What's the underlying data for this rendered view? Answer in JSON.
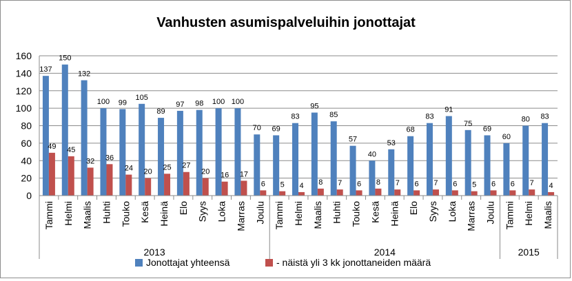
{
  "chart_data": {
    "type": "bar",
    "title": "Vanhusten asumispalveluihin jonottajat",
    "categories": [
      "Tammi",
      "Helmi",
      "Maalis",
      "Huhti",
      "Touko",
      "Kesä",
      "Heinä",
      "Elo",
      "Syys",
      "Loka",
      "Marras",
      "Joulu",
      "Tammi",
      "Helmi",
      "Maalis",
      "Huhti",
      "Touko",
      "Kesä",
      "Heinä",
      "Elo",
      "Syys",
      "Loka",
      "Marras",
      "Joulu",
      "Tammi",
      "Helmi",
      "Maalis"
    ],
    "year_groups": [
      {
        "label": "2013",
        "count": 12
      },
      {
        "label": "2014",
        "count": 12
      },
      {
        "label": "2015",
        "count": 3
      }
    ],
    "series": [
      {
        "name": "Jonottajat yhteensä",
        "color": "#4f81bd",
        "values": [
          137,
          150,
          132,
          100,
          99,
          105,
          89,
          97,
          98,
          100,
          100,
          70,
          69,
          83,
          95,
          85,
          57,
          40,
          53,
          68,
          83,
          91,
          75,
          69,
          60,
          80,
          83
        ]
      },
      {
        "name": "- näistä yli 3 kk jonottaneiden määrä",
        "color": "#c0504d",
        "values": [
          49,
          45,
          32,
          36,
          24,
          20,
          25,
          27,
          20,
          16,
          17,
          6,
          5,
          4,
          8,
          7,
          6,
          8,
          7,
          6,
          7,
          6,
          5,
          6,
          6,
          7,
          4
        ]
      }
    ],
    "ylim": [
      0,
      160
    ],
    "yticks": [
      0,
      20,
      40,
      60,
      80,
      100,
      120,
      140,
      160
    ],
    "grid": true,
    "legend_position": "bottom"
  }
}
